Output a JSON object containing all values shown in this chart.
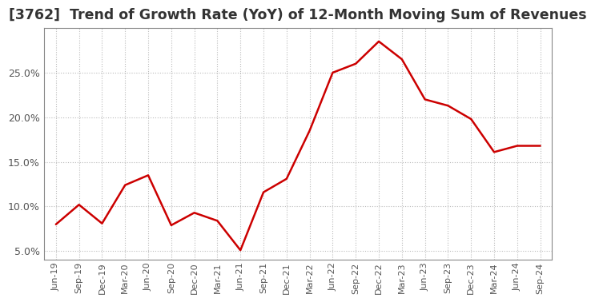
{
  "title": "[3762]  Trend of Growth Rate (YoY) of 12-Month Moving Sum of Revenues",
  "line_color": "#cc0000",
  "background_color": "#ffffff",
  "plot_bg_color": "#ffffff",
  "grid_color": "#bbbbbb",
  "title_fontsize": 12.5,
  "labels": [
    "Jun-19",
    "Sep-19",
    "Dec-19",
    "Mar-20",
    "Jun-20",
    "Sep-20",
    "Dec-20",
    "Mar-21",
    "Jun-21",
    "Sep-21",
    "Dec-21",
    "Mar-22",
    "Jun-22",
    "Sep-22",
    "Dec-22",
    "Mar-23",
    "Jun-23",
    "Sep-23",
    "Dec-23",
    "Mar-24",
    "Jun-24",
    "Sep-24"
  ],
  "values": [
    8.0,
    10.2,
    8.1,
    12.4,
    13.5,
    7.9,
    9.3,
    8.4,
    5.1,
    11.6,
    13.1,
    18.5,
    25.0,
    26.0,
    28.5,
    26.5,
    22.0,
    21.3,
    19.8,
    16.1,
    16.8,
    16.8
  ],
  "ylim": [
    4.0,
    30.0
  ],
  "yticks": [
    5.0,
    10.0,
    15.0,
    20.0,
    25.0
  ],
  "tick_label_color": "#555555",
  "spine_color": "#888888",
  "linewidth": 1.8
}
